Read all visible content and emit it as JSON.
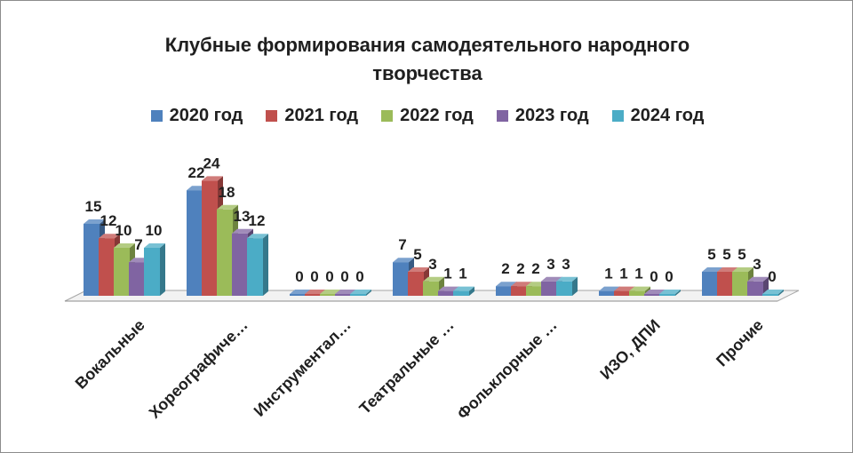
{
  "chart_data": {
    "type": "bar",
    "title": "Клубные формирования самодеятельного народного творчества",
    "title_lines": [
      "Клубные формирования самодеятельного народного",
      "творчества"
    ],
    "categories": [
      "Вокальные",
      "Хореографиче…",
      "Инструментал…",
      "Театральные …",
      "Фольклорные …",
      "ИЗО, ДПИ",
      "Прочие"
    ],
    "series": [
      {
        "name": "2020 год",
        "color": "#4f81bd",
        "values": [
          15,
          22,
          0,
          7,
          2,
          1,
          5
        ]
      },
      {
        "name": "2021 год",
        "color": "#c0504d",
        "values": [
          12,
          24,
          0,
          5,
          2,
          1,
          5
        ]
      },
      {
        "name": "2022 год",
        "color": "#9bbb59",
        "values": [
          10,
          18,
          0,
          3,
          2,
          1,
          5
        ]
      },
      {
        "name": "2023 год",
        "color": "#8064a2",
        "values": [
          7,
          13,
          0,
          1,
          3,
          0,
          3
        ]
      },
      {
        "name": "2024 год",
        "color": "#4bacc6",
        "values": [
          10,
          12,
          0,
          1,
          3,
          0,
          0
        ]
      }
    ],
    "xlabel": "",
    "ylabel": "",
    "ylim": [
      0,
      24
    ],
    "grid": false,
    "legend_position": "top",
    "three_d": true
  }
}
